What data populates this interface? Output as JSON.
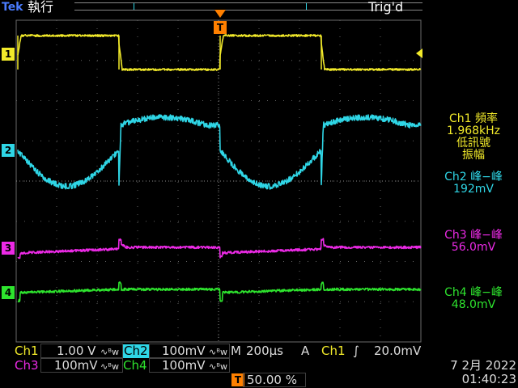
{
  "header": {
    "brand": "Tek",
    "run_state": "執行",
    "trigger_status": "Trig'd",
    "trigger_marker": "T"
  },
  "colors": {
    "ch1": "#f2ea2a",
    "ch2": "#2fd6e6",
    "ch3": "#ec2ae6",
    "ch4": "#2ee42e",
    "grid": "#606060",
    "trigger": "#ff8000"
  },
  "channel_markers": [
    "1",
    "2",
    "3",
    "4"
  ],
  "measurements": [
    {
      "lines": [
        "Ch1 頻率",
        "1.968kHz",
        "低訊號",
        "振幅"
      ],
      "color": "#f2ea2a"
    },
    {
      "lines": [
        "Ch2 峰−峰",
        "192mV"
      ],
      "color": "#2fd6e6"
    },
    {
      "lines": [
        "Ch3 峰−峰",
        "56.0mV"
      ],
      "color": "#ec2ae6"
    },
    {
      "lines": [
        "Ch4 峰−峰",
        "48.0mV"
      ],
      "color": "#2ee42e"
    }
  ],
  "bottom": {
    "ch1_label": "Ch1",
    "ch1_scale": "1.00 V",
    "ch2_label": "Ch2",
    "ch2_scale": "100mV",
    "ch3_label": "Ch3",
    "ch3_scale": "100mV",
    "ch4_label": "Ch4",
    "ch4_scale": "100mV",
    "bw_symbol": "∿ᴮw",
    "timebase_label": "M",
    "timebase": "200µs",
    "acq_mode": "A",
    "trigger_source": "Ch1",
    "trigger_slope": "∫",
    "trigger_level": "20.0mV",
    "trigger_pos_marker": "T",
    "trigger_position": "50.00 %",
    "date": "7 2月  2022",
    "time": "01:40:23"
  }
}
